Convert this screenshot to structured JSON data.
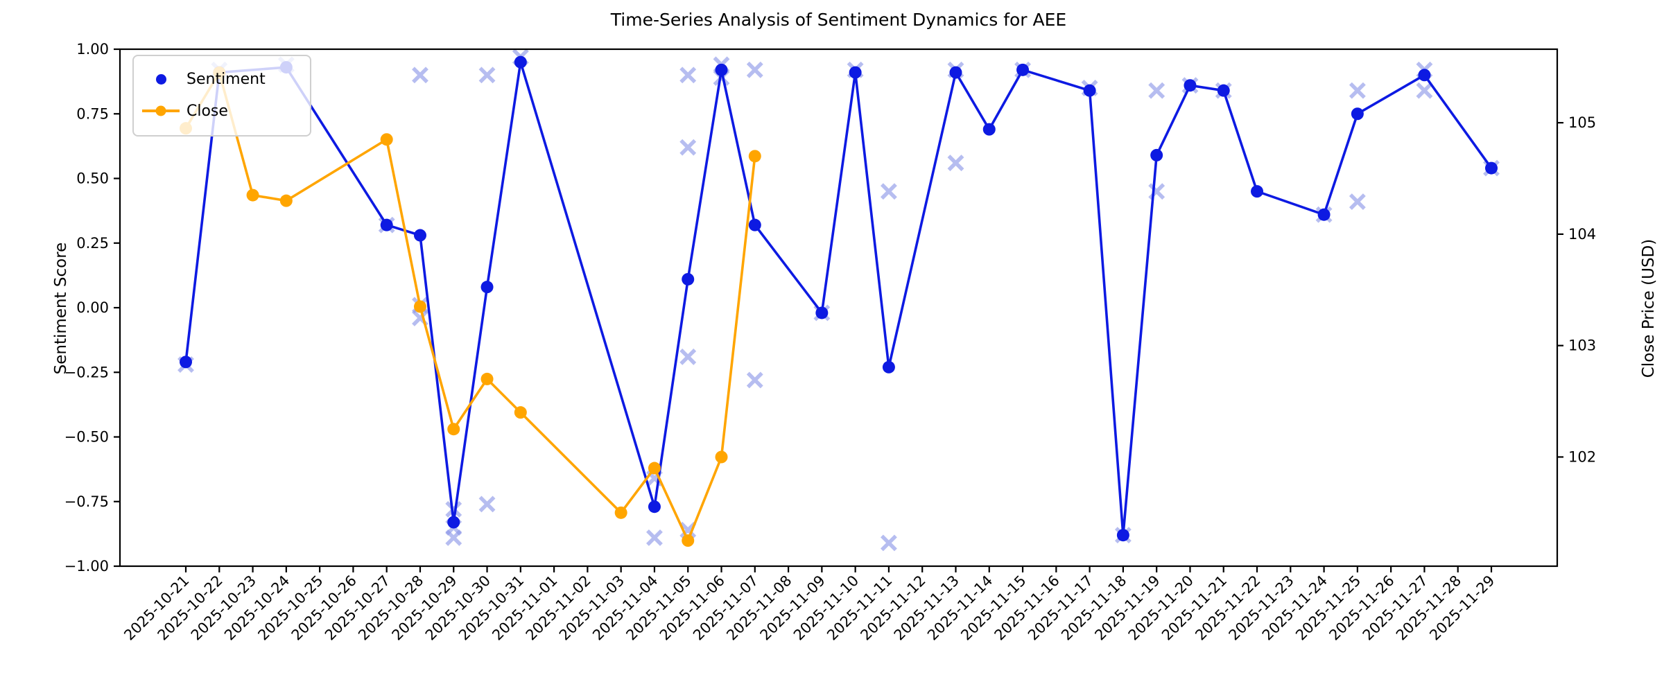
{
  "title": "Time-Series Analysis of Sentiment Dynamics for AEE",
  "axes": {
    "y_left_label": "Sentiment Score",
    "y_right_label": "Close Price (USD)"
  },
  "legend": {
    "position": "upper left",
    "items": [
      {
        "label": "Sentiment",
        "type": "dot"
      },
      {
        "label": "Close",
        "type": "line-dot"
      }
    ]
  },
  "colors": {
    "sentiment": "#0d1ae2",
    "close": "#ffa500",
    "news": "#8b96e8",
    "axis": "#000000",
    "legend_border": "#cfcfcf"
  },
  "chart_data": {
    "type": "line",
    "title": "Time-Series Analysis of Sentiment Dynamics for AEE",
    "xlabel": "",
    "ylabel_left": "Sentiment Score",
    "ylabel_right": "Close Price (USD)",
    "legend_position": "upper left",
    "grid": false,
    "ylim_left": [
      -1.0,
      1.0
    ],
    "ylim_right": [
      101.02,
      105.66
    ],
    "yticks_left": [
      {
        "label": "1.00",
        "value": 1.0
      },
      {
        "label": "0.75",
        "value": 0.75
      },
      {
        "label": "0.50",
        "value": 0.5
      },
      {
        "label": "0.25",
        "value": 0.25
      },
      {
        "label": "0.00",
        "value": 0.0
      },
      {
        "label": "−0.25",
        "value": -0.25
      },
      {
        "label": "−0.50",
        "value": -0.5
      },
      {
        "label": "−0.75",
        "value": -0.75
      },
      {
        "label": "−1.00",
        "value": -1.0
      }
    ],
    "yticks_right": [
      {
        "label": "105",
        "value": 105
      },
      {
        "label": "104",
        "value": 104
      },
      {
        "label": "103",
        "value": 103
      },
      {
        "label": "102",
        "value": 102
      }
    ],
    "x_dates": [
      "2025-10-21",
      "2025-10-22",
      "2025-10-23",
      "2025-10-24",
      "2025-10-25",
      "2025-10-26",
      "2025-10-27",
      "2025-10-28",
      "2025-10-29",
      "2025-10-30",
      "2025-10-31",
      "2025-11-01",
      "2025-11-02",
      "2025-11-03",
      "2025-11-04",
      "2025-11-05",
      "2025-11-06",
      "2025-11-07",
      "2025-11-08",
      "2025-11-09",
      "2025-11-10",
      "2025-11-11",
      "2025-11-12",
      "2025-11-13",
      "2025-11-14",
      "2025-11-15",
      "2025-11-16",
      "2025-11-17",
      "2025-11-18",
      "2025-11-19",
      "2025-11-20",
      "2025-11-21",
      "2025-11-22",
      "2025-11-23",
      "2025-11-24",
      "2025-11-25",
      "2025-11-26",
      "2025-11-27",
      "2025-11-28",
      "2025-11-29"
    ],
    "series": [
      {
        "name": "Sentiment",
        "axis": "left",
        "points": [
          [
            "2025-10-21",
            -0.21
          ],
          [
            "2025-10-22",
            0.91
          ],
          [
            "2025-10-24",
            0.93
          ],
          [
            "2025-10-27",
            0.32
          ],
          [
            "2025-10-28",
            0.28
          ],
          [
            "2025-10-29",
            -0.83
          ],
          [
            "2025-10-30",
            0.08
          ],
          [
            "2025-10-31",
            0.95
          ],
          [
            "2025-11-04",
            -0.77
          ],
          [
            "2025-11-05",
            0.11
          ],
          [
            "2025-11-06",
            0.92
          ],
          [
            "2025-11-07",
            0.32
          ],
          [
            "2025-11-09",
            -0.02
          ],
          [
            "2025-11-10",
            0.91
          ],
          [
            "2025-11-11",
            -0.23
          ],
          [
            "2025-11-13",
            0.91
          ],
          [
            "2025-11-14",
            0.69
          ],
          [
            "2025-11-15",
            0.92
          ],
          [
            "2025-11-17",
            0.84
          ],
          [
            "2025-11-18",
            -0.88
          ],
          [
            "2025-11-19",
            0.59
          ],
          [
            "2025-11-20",
            0.86
          ],
          [
            "2025-11-21",
            0.84
          ],
          [
            "2025-11-22",
            0.45
          ],
          [
            "2025-11-24",
            0.36
          ],
          [
            "2025-11-25",
            0.75
          ],
          [
            "2025-11-27",
            0.9
          ],
          [
            "2025-11-29",
            0.54
          ]
        ]
      },
      {
        "name": "Close",
        "axis": "right",
        "points": [
          [
            "2025-10-21",
            104.95
          ],
          [
            "2025-10-22",
            105.45
          ],
          [
            "2025-10-23",
            104.35
          ],
          [
            "2025-10-24",
            104.3
          ],
          [
            "2025-10-27",
            104.85
          ],
          [
            "2025-10-28",
            103.35
          ],
          [
            "2025-10-29",
            102.25
          ],
          [
            "2025-10-30",
            102.7
          ],
          [
            "2025-10-31",
            102.4
          ],
          [
            "2025-11-03",
            101.5
          ],
          [
            "2025-11-04",
            101.9
          ],
          [
            "2025-11-05",
            101.25
          ],
          [
            "2025-11-06",
            102.0
          ],
          [
            "2025-11-07",
            104.7
          ]
        ]
      }
    ],
    "news_sentiment_markers": {
      "marker": "x",
      "axis": "left",
      "points": [
        [
          "2025-10-21",
          -0.22
        ],
        [
          "2025-10-22",
          0.92
        ],
        [
          "2025-10-24",
          0.94
        ],
        [
          "2025-10-27",
          0.32
        ],
        [
          "2025-10-28",
          0.9
        ],
        [
          "2025-10-28",
          0.01
        ],
        [
          "2025-10-28",
          -0.04
        ],
        [
          "2025-10-29",
          -0.78
        ],
        [
          "2025-10-29",
          -0.85
        ],
        [
          "2025-10-29",
          -0.89
        ],
        [
          "2025-10-30",
          0.9
        ],
        [
          "2025-10-30",
          -0.76
        ],
        [
          "2025-10-31",
          0.97
        ],
        [
          "2025-11-04",
          -0.66
        ],
        [
          "2025-11-04",
          -0.89
        ],
        [
          "2025-11-05",
          0.9
        ],
        [
          "2025-11-05",
          0.62
        ],
        [
          "2025-11-05",
          -0.19
        ],
        [
          "2025-11-05",
          -0.86
        ],
        [
          "2025-11-06",
          0.94
        ],
        [
          "2025-11-06",
          0.89
        ],
        [
          "2025-11-07",
          0.92
        ],
        [
          "2025-11-07",
          -0.28
        ],
        [
          "2025-11-09",
          -0.02
        ],
        [
          "2025-11-10",
          0.92
        ],
        [
          "2025-11-11",
          0.45
        ],
        [
          "2025-11-11",
          -0.91
        ],
        [
          "2025-11-13",
          0.92
        ],
        [
          "2025-11-13",
          0.56
        ],
        [
          "2025-11-15",
          0.92
        ],
        [
          "2025-11-17",
          0.85
        ],
        [
          "2025-11-18",
          -0.88
        ],
        [
          "2025-11-19",
          0.84
        ],
        [
          "2025-11-19",
          0.45
        ],
        [
          "2025-11-20",
          0.86
        ],
        [
          "2025-11-21",
          0.84
        ],
        [
          "2025-11-24",
          0.36
        ],
        [
          "2025-11-25",
          0.84
        ],
        [
          "2025-11-25",
          0.41
        ],
        [
          "2025-11-27",
          0.92
        ],
        [
          "2025-11-27",
          0.84
        ],
        [
          "2025-11-29",
          0.54
        ]
      ]
    }
  }
}
